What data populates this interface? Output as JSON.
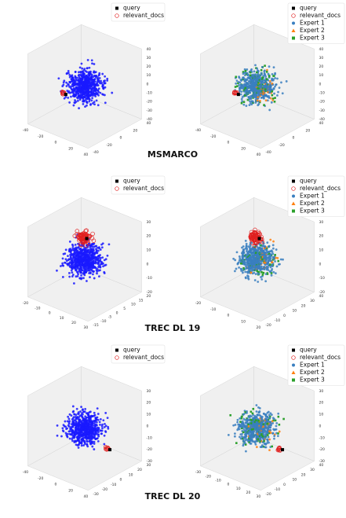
{
  "rows": [
    {
      "caption": "MSMARCO",
      "left": {
        "legend": [
          "query",
          "relevant_docs"
        ],
        "xticks": [
          "-40",
          "-20",
          "0",
          "20",
          "40"
        ],
        "yticks": [
          "-40",
          "-20",
          "0",
          "20",
          "40"
        ],
        "zticks": [
          "40",
          "30",
          "20",
          "10",
          "0",
          "-10",
          "-20",
          "-30",
          "-40"
        ]
      },
      "right": {
        "legend": [
          "query",
          "relevant_docs",
          "Expert 1",
          "Expert 2",
          "Expert 3"
        ],
        "xticks": [
          "-40",
          "-20",
          "0",
          "20",
          "40"
        ],
        "yticks": [
          "-40",
          "-20",
          "0",
          "20",
          "40"
        ],
        "zticks": [
          "40",
          "30",
          "20",
          "10",
          "0",
          "-10",
          "-20",
          "-30",
          "-40"
        ]
      }
    },
    {
      "caption": "TREC DL 19",
      "left": {
        "legend": [
          "query",
          "relevant_docs"
        ],
        "xticks": [
          "-20",
          "-10",
          "0",
          "10",
          "20",
          "30"
        ],
        "yticks": [
          "-15",
          "-10",
          "-5",
          "0",
          "5",
          "10",
          "15",
          "20"
        ],
        "zticks": [
          "30",
          "20",
          "10",
          "0",
          "-10",
          "-20"
        ]
      },
      "right": {
        "legend": [
          "query",
          "relevant_docs",
          "Expert 1",
          "Expert 2",
          "Expert 3"
        ],
        "xticks": [
          "-20",
          "-10",
          "0",
          "10",
          "20"
        ],
        "yticks": [
          "-20",
          "-10",
          "0",
          "10",
          "20",
          "30",
          "40"
        ],
        "zticks": [
          "30",
          "20",
          "10",
          "0",
          "-10",
          "-20"
        ]
      }
    },
    {
      "caption": "TREC DL 20",
      "left": {
        "legend": [
          "query",
          "relevant_docs"
        ],
        "xticks": [
          "-40",
          "-20",
          "0",
          "20",
          "40"
        ],
        "yticks": [
          "-30",
          "-20",
          "-10",
          "0",
          "10",
          "20",
          "30"
        ],
        "zticks": [
          "30",
          "20",
          "10",
          "0",
          "-10",
          "-20",
          "-30"
        ]
      },
      "right": {
        "legend": [
          "query",
          "relevant_docs",
          "Expert 1",
          "Expert 2",
          "Expert 3"
        ],
        "xticks": [
          "-30",
          "-20",
          "-10",
          "0",
          "10",
          "20",
          "30"
        ],
        "yticks": [
          "-20",
          "-10",
          "0",
          "10",
          "20",
          "30",
          "40"
        ],
        "zticks": [
          "30",
          "20",
          "10",
          "0",
          "-10",
          "-20",
          "-30"
        ]
      }
    }
  ]
}
